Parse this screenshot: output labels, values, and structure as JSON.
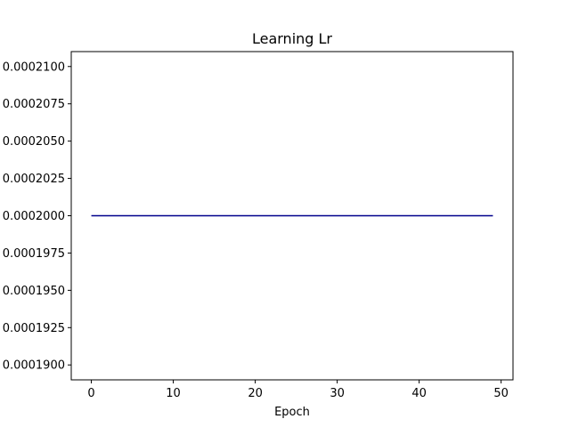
{
  "chart_data": {
    "type": "line",
    "title": "Learning Lr",
    "xlabel": "Epoch",
    "ylabel": "",
    "xlim": [
      -2.45,
      51.45
    ],
    "ylim": [
      0.000189,
      0.000211
    ],
    "x_ticks": [
      0,
      10,
      20,
      30,
      40,
      50
    ],
    "x_tick_labels": [
      "0",
      "10",
      "20",
      "30",
      "40",
      "50"
    ],
    "y_ticks": [
      0.00019,
      0.0001925,
      0.000195,
      0.0001975,
      0.0002,
      0.0002025,
      0.000205,
      0.0002075,
      0.00021
    ],
    "y_tick_labels": [
      "0.0001900",
      "0.0001925",
      "0.0001950",
      "0.0001975",
      "0.0002000",
      "0.0002025",
      "0.0002050",
      "0.0002075",
      "0.0002100"
    ],
    "grid": false,
    "series": [
      {
        "color": "#00008b",
        "x": [
          0,
          49
        ],
        "y": [
          0.0002,
          0.0002
        ]
      }
    ]
  }
}
